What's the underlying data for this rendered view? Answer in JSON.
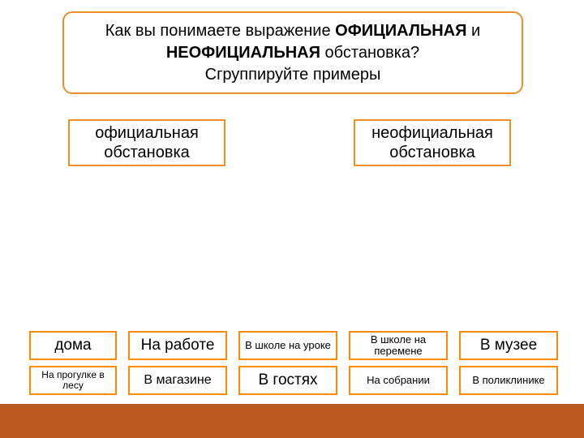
{
  "colors": {
    "box_border": "#ed8f2b",
    "tile_border": "#ff8c00",
    "footer_bg": "#b85a1e",
    "page_bg": "#ffffff",
    "text": "#000000"
  },
  "question": {
    "line1_prefix": "Как вы понимаете выражение ",
    "line1_bold1": "ОФИЦИАЛЬНАЯ",
    "line1_mid": " и",
    "line2_bold": "НЕОФИЦИАЛЬНАЯ",
    "line2_suffix": " обстановка?",
    "line3": "Сгруппируйте примеры"
  },
  "categories": {
    "left": "официальная обстановка",
    "right": "неофициальная обстановка"
  },
  "tiles": {
    "r1c1": "дома",
    "r1c2": "На работе",
    "r1c3": "В школе на уроке",
    "r1c4": "В школе на перемене",
    "r1c5": "В музее",
    "r2c1": "На прогулке в лесу",
    "r2c2": "В магазине",
    "r2c3": "В гостях",
    "r2c4": "На собрании",
    "r2c5": "В поликлинике"
  }
}
